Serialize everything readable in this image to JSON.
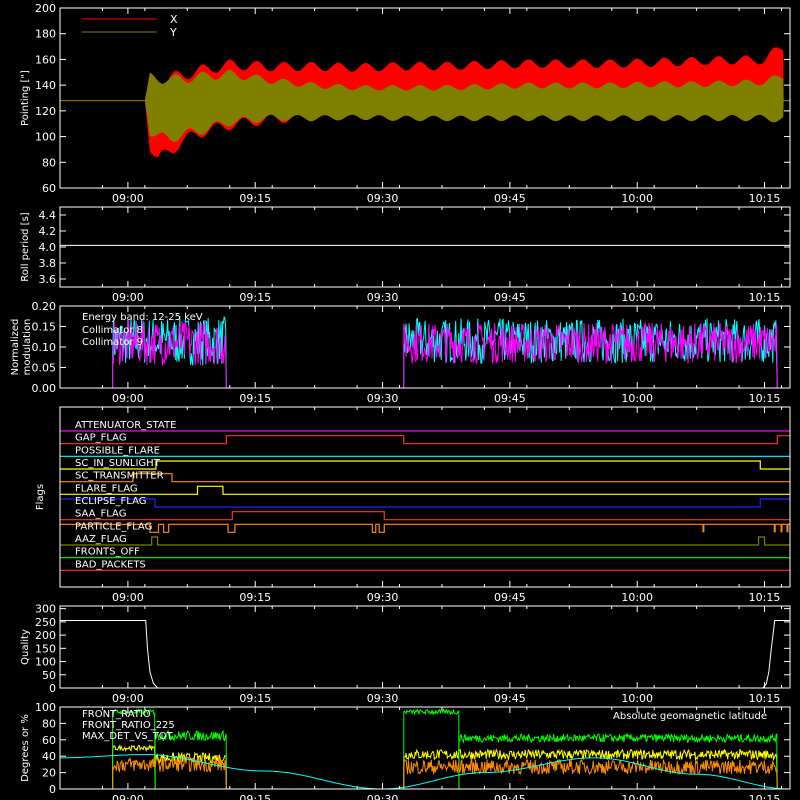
{
  "chart_data": [
    {
      "type": "line",
      "ylabel": "Pointing [\"]",
      "ylim": [
        60,
        200
      ],
      "yticks": [
        "60",
        "80",
        "100",
        "120",
        "140",
        "160",
        "180",
        "200"
      ],
      "xlim_min": [
        0,
        86
      ],
      "xticks": [
        "09:00",
        "09:15",
        "09:30",
        "09:45",
        "10:00",
        "10:15"
      ],
      "xtick_min": [
        8,
        23,
        38,
        53,
        68,
        83
      ],
      "legend_position": "top-left",
      "series": [
        {
          "name": "X",
          "color": "#ff0000",
          "segments": [
            {
              "t": [
                0,
                10,
                10,
                10.6,
                11.5,
                13,
                16,
                20,
                25,
                30,
                35,
                40,
                45,
                50,
                55,
                60,
                65,
                70,
                75,
                80,
                83,
                85.2,
                85.2,
                86
              ],
              "upper": [
                128,
                128,
                128,
                150,
                148,
                150,
                155,
                160,
                158,
                158,
                157,
                158,
                158,
                159,
                160,
                160,
                160,
                161,
                162,
                163,
                163,
                175,
                128,
                128
              ],
              "lower": [
                128,
                128,
                128,
                88,
                75,
                85,
                98,
                105,
                110,
                112,
                113,
                114,
                115,
                115,
                116,
                116,
                116,
                116,
                117,
                118,
                118,
                112,
                128,
                128
              ]
            }
          ]
        },
        {
          "name": "Y",
          "color": "#808000",
          "segments": [
            {
              "t": [
                0,
                10,
                10,
                10.6,
                11.5,
                13,
                16,
                20,
                25,
                30,
                35,
                40,
                45,
                50,
                55,
                60,
                65,
                70,
                75,
                80,
                83,
                85.2,
                85.2,
                86
              ],
              "upper": [
                128,
                128,
                128,
                150,
                150,
                148,
                150,
                152,
                146,
                142,
                140,
                140,
                140,
                141,
                142,
                142,
                142,
                143,
                143,
                144,
                145,
                150,
                128,
                128
              ],
              "lower": [
                128,
                128,
                128,
                100,
                95,
                95,
                100,
                108,
                112,
                112,
                113,
                112,
                112,
                112,
                112,
                112,
                112,
                112,
                112,
                112,
                112,
                110,
                128,
                128
              ]
            }
          ]
        }
      ]
    },
    {
      "type": "line",
      "ylabel": "Roll period [s]",
      "ylim": [
        3.5,
        4.5
      ],
      "yticks": [
        "3.6",
        "3.8",
        "4.0",
        "4.2",
        "4.4"
      ],
      "xlim_min": [
        0,
        86
      ],
      "xticks": [
        "09:00",
        "09:15",
        "09:30",
        "09:45",
        "10:00",
        "10:15"
      ],
      "xtick_min": [
        8,
        23,
        38,
        53,
        68,
        83
      ],
      "series": [
        {
          "name": "",
          "color": "#ffffff",
          "segments": [
            {
              "t": [
                0,
                86
              ],
              "y": [
                4.02,
                4.02
              ]
            }
          ]
        }
      ]
    },
    {
      "type": "line",
      "ylabel": "Normalized modulation",
      "ylim": [
        0,
        0.2
      ],
      "yticks": [
        "0.00",
        "0.05",
        "0.10",
        "0.15",
        "0.20"
      ],
      "xlim_min": [
        0,
        86
      ],
      "xticks": [
        "09:00",
        "09:15",
        "09:30",
        "09:45",
        "10:00",
        "10:15"
      ],
      "xtick_min": [
        8,
        23,
        38,
        53,
        68,
        83
      ],
      "annotations": [
        "Energy band: 12-25 keV"
      ],
      "series": [
        {
          "name": "Collimator 8",
          "color": "#00ffff",
          "segments": [
            {
              "t": [
                6.2,
                19.6
              ],
              "mean": 0.115,
              "spread": 0.06
            },
            {
              "t": [
                40.5,
                84.5
              ],
              "mean": 0.115,
              "spread": 0.055
            }
          ]
        },
        {
          "name": "Collimator 9",
          "color": "#ff00ff",
          "segments": [
            {
              "t": [
                6.2,
                19.6
              ],
              "mean": 0.11,
              "spread": 0.055
            },
            {
              "t": [
                40.5,
                84.5
              ],
              "mean": 0.11,
              "spread": 0.05
            }
          ]
        }
      ]
    },
    {
      "type": "line",
      "ylabel": "Flags",
      "xlim_min": [
        0,
        86
      ],
      "xticks": [
        "09:00",
        "09:15",
        "09:30",
        "09:45",
        "10:00",
        "10:15"
      ],
      "xtick_min": [
        8,
        23,
        38,
        53,
        68,
        83
      ],
      "flags": [
        {
          "name": "ATTENUATOR_STATE",
          "color": "#ff00ff",
          "t": [
            0,
            86
          ],
          "v": [
            0,
            0
          ]
        },
        {
          "name": "GAP_FLAG",
          "color": "#ff3030",
          "t": [
            0,
            19.6,
            19.6,
            40.5,
            40.5,
            84.5,
            84.5,
            86
          ],
          "v": [
            0,
            0,
            1,
            1,
            0,
            0,
            1,
            1
          ]
        },
        {
          "name": "POSSIBLE_FLARE",
          "color": "#00ffff",
          "t": [
            0,
            86
          ],
          "v": [
            0,
            0
          ]
        },
        {
          "name": "SC_IN_SUNLIGHT",
          "color": "#ffff00",
          "t": [
            0,
            11.3,
            11.3,
            82.5,
            82.5,
            86
          ],
          "v": [
            0,
            0,
            1,
            1,
            0,
            0
          ]
        },
        {
          "name": "SC_TRANSMITTER",
          "color": "#ff8c00",
          "t": [
            0,
            8.6,
            8.6,
            13.2,
            13.2,
            86
          ],
          "v": [
            0,
            0,
            1,
            1,
            0,
            0
          ]
        },
        {
          "name": "FLARE_FLAG",
          "color": "#ffff00",
          "t": [
            0,
            16.2,
            16.2,
            19.2,
            19.2,
            86
          ],
          "v": [
            0,
            0,
            1,
            1,
            0,
            0
          ]
        },
        {
          "name": "ECLIPSE_FLAG",
          "color": "#2020ff",
          "t": [
            0,
            11.2,
            11.2,
            82.5,
            82.5,
            86
          ],
          "v": [
            1,
            1,
            0,
            0,
            1,
            1
          ]
        },
        {
          "name": "SAA_FLAG",
          "color": "#ff3030",
          "t": [
            0,
            20.3,
            20.3,
            38.2,
            38.2,
            86
          ],
          "v": [
            0,
            0,
            1,
            1,
            0,
            0
          ]
        },
        {
          "name": "PARTICLE_FLAG",
          "color": "#ff8c00",
          "t": [
            0,
            10.6,
            10.6,
            11.6,
            11.6,
            12.2,
            12.2,
            12.8,
            12.8,
            19.8,
            19.8,
            20.6,
            20.6,
            36.8,
            36.8,
            37.2,
            37.2,
            37.6,
            37.6,
            38.2,
            38.2,
            40.3,
            40.3,
            86
          ],
          "v": [
            1,
            1,
            0,
            0,
            1,
            1,
            0,
            0,
            1,
            1,
            0,
            0,
            1,
            1,
            0,
            0,
            1,
            1,
            0,
            0,
            1,
            1,
            1,
            1
          ],
          "spikes": [
            75.8,
            84.2,
            85.0,
            85.7
          ]
        },
        {
          "name": "AAZ_FLAG",
          "color": "#808000",
          "t": [
            0,
            10.8,
            10.8,
            11.5,
            11.5,
            82.3,
            82.3,
            83.0,
            83.0,
            86
          ],
          "v": [
            0,
            0,
            1,
            1,
            0,
            0,
            1,
            1,
            0,
            0
          ]
        },
        {
          "name": "FRONTS_OFF",
          "color": "#00ff00",
          "t": [
            0,
            86
          ],
          "v": [
            0,
            0
          ]
        },
        {
          "name": "BAD_PACKETS",
          "color": "#ff3030",
          "t": [
            0,
            86
          ],
          "v": [
            0,
            0
          ]
        }
      ]
    },
    {
      "type": "line",
      "ylabel": "Quality",
      "ylim": [
        0,
        310
      ],
      "yticks": [
        "0",
        "50",
        "100",
        "150",
        "200",
        "250",
        "300"
      ],
      "xlim_min": [
        0,
        86
      ],
      "xticks": [
        "09:00",
        "09:15",
        "09:30",
        "09:45",
        "10:00",
        "10:15"
      ],
      "xtick_min": [
        8,
        23,
        38,
        53,
        68,
        83
      ],
      "series": [
        {
          "name": "",
          "color": "#ffffff",
          "segments": [
            {
              "t": [
                0,
                10.1,
                10.3,
                10.6,
                11.0,
                11.5,
                86
              ],
              "y": [
                255,
                255,
                150,
                60,
                18,
                0,
                0
              ]
            }
          ]
        },
        {
          "name": "",
          "color": "#ffffff",
          "segments": [
            {
              "t": [
                82.8,
                83.2,
                83.5,
                83.8,
                84.2,
                86
              ],
              "y": [
                0,
                15,
                60,
                150,
                255,
                255
              ]
            }
          ]
        }
      ]
    },
    {
      "type": "line",
      "ylabel": "Degrees or %",
      "ylim": [
        0,
        100
      ],
      "yticks": [
        "0",
        "20",
        "40",
        "60",
        "80",
        "100"
      ],
      "xlim_min": [
        0,
        86
      ],
      "xticks": [
        "09:00",
        "09:15",
        "09:30",
        "09:45",
        "10:00",
        "10:15"
      ],
      "xtick_min": [
        8,
        23,
        38,
        53,
        68,
        83
      ],
      "annotations": [
        "Absolute geomagnetic latitude"
      ],
      "series": [
        {
          "name": "FRONT_RATIO",
          "color": "#ffff00",
          "segments": [
            {
              "t": [
                6.2,
                11.2
              ],
              "mean": 50,
              "spread": 3
            },
            {
              "t": [
                11.2,
                19.6
              ],
              "mean": 38,
              "spread": 6
            },
            {
              "t": [
                40.5,
                84.5
              ],
              "mean": 42,
              "spread": 6
            }
          ]
        },
        {
          "name": "FRONT_RATIO_225",
          "color": "#00ff00",
          "segments": [
            {
              "t": [
                6.2,
                11.2
              ],
              "mean": 94,
              "spread": 3
            },
            {
              "t": [
                11.2,
                19.6
              ],
              "mean": 65,
              "spread": 6
            },
            {
              "t": [
                40.5,
                47
              ],
              "mean": 94,
              "spread": 3
            },
            {
              "t": [
                47,
                84.5
              ],
              "mean": 62,
              "spread": 5
            }
          ]
        },
        {
          "name": "MAX_DET_VS_TOT",
          "color": "#ff8c00",
          "segments": [
            {
              "t": [
                6.2,
                19.6
              ],
              "mean": 30,
              "spread": 9
            },
            {
              "t": [
                40.5,
                84.5
              ],
              "mean": 27,
              "spread": 9
            }
          ]
        },
        {
          "name": "Absolute geomagnetic latitude",
          "color": "#00ffff",
          "segments": [
            {
              "t": [
                0,
                10,
                24,
                38,
                50,
                63,
                75,
                86
              ],
              "y": [
                38,
                42,
                22,
                0,
                20,
                38,
                18,
                0
              ]
            }
          ]
        }
      ]
    }
  ]
}
